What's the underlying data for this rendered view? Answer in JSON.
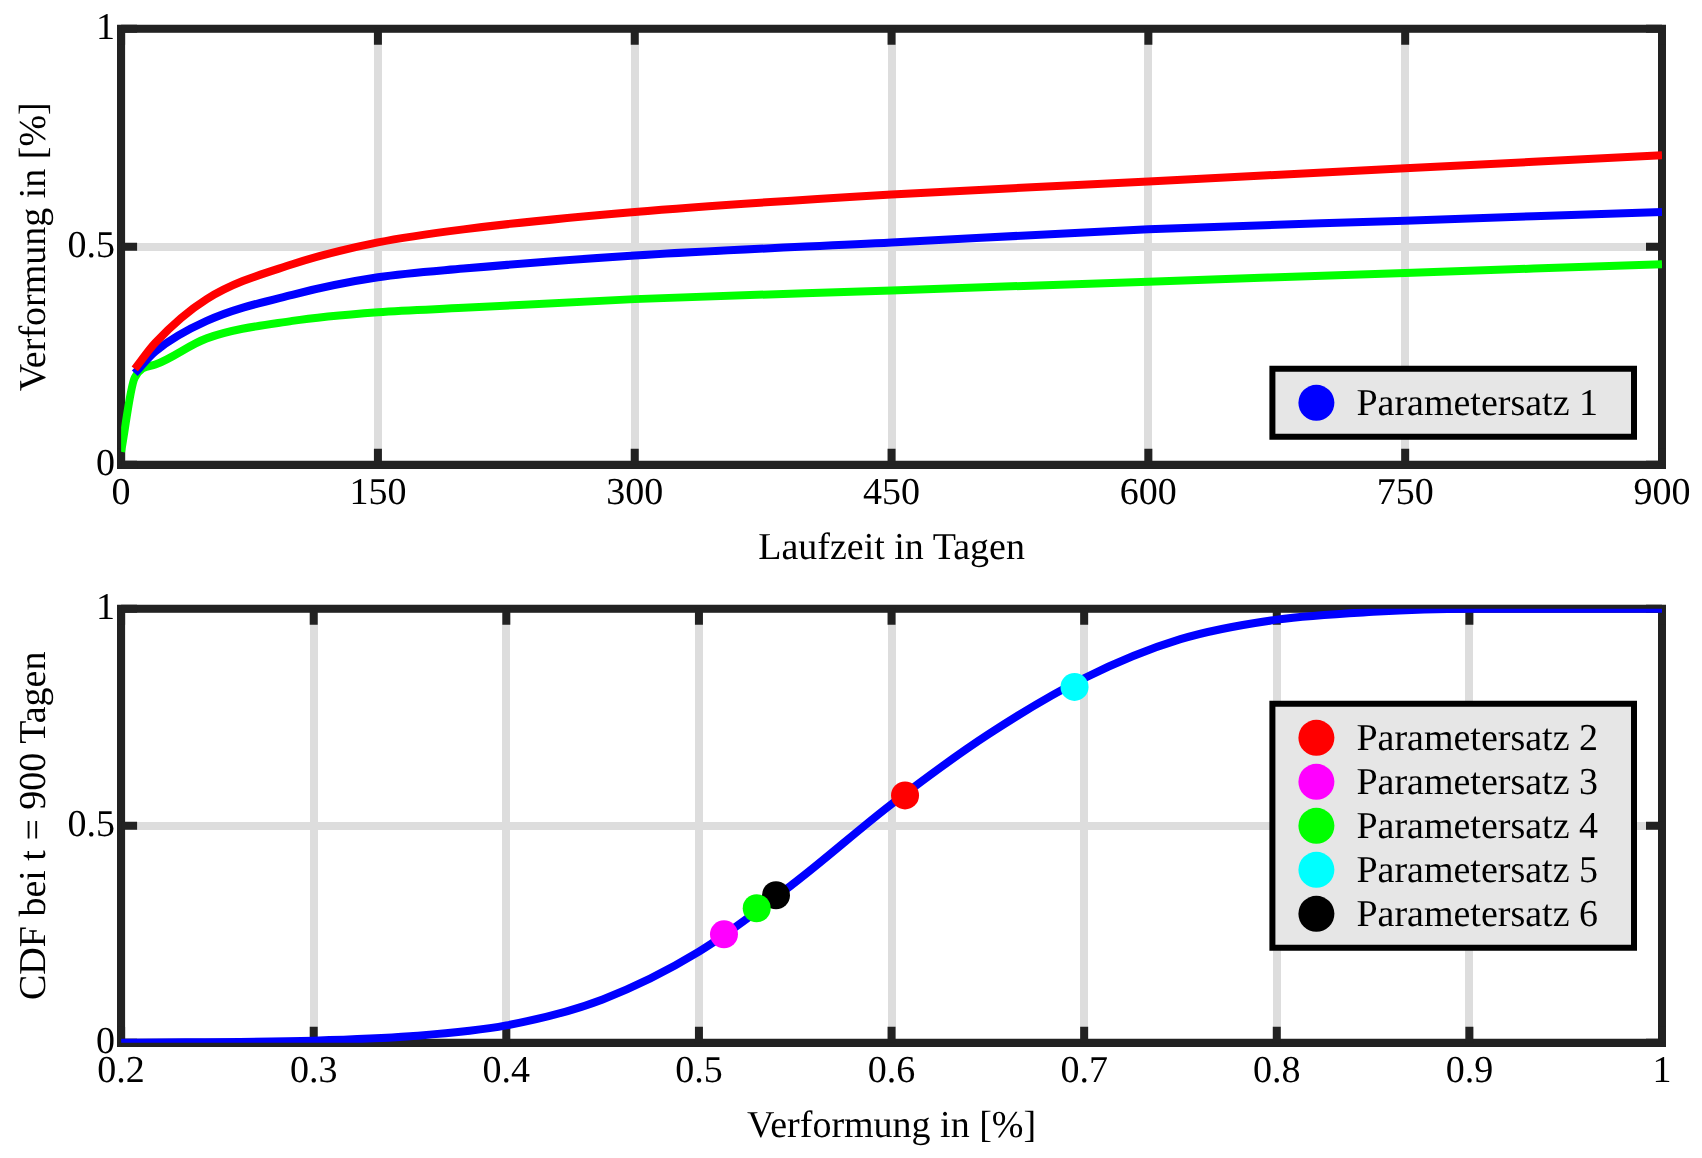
{
  "chart_data": [
    {
      "type": "line",
      "xlabel": "Laufzeit in Tagen",
      "ylabel": "Verformung in [%]",
      "xlim": [
        0,
        900
      ],
      "ylim": [
        0,
        1
      ],
      "xticks": [
        0,
        150,
        300,
        450,
        600,
        750,
        900
      ],
      "yticks": [
        0,
        0.5,
        1
      ],
      "grid": true,
      "legend": "bottom right",
      "marker": "none",
      "series": [
        {
          "color": "#ff0000",
          "x": [
            8,
            20,
            50,
            100,
            150,
            200,
            300,
            450,
            600,
            750,
            900
          ],
          "values": [
            0.22,
            0.28,
            0.38,
            0.46,
            0.51,
            0.54,
            0.58,
            0.62,
            0.65,
            0.68,
            0.71
          ]
        },
        {
          "name": "Parametersatz 1",
          "color": "#0000ff",
          "x": [
            8,
            20,
            50,
            100,
            150,
            200,
            300,
            450,
            600,
            750,
            900
          ],
          "values": [
            0.21,
            0.26,
            0.33,
            0.39,
            0.43,
            0.45,
            0.48,
            0.51,
            0.54,
            0.56,
            0.58
          ]
        },
        {
          "color": "#00ff00",
          "x": [
            0,
            8,
            20,
            50,
            100,
            150,
            200,
            300,
            450,
            600,
            750,
            900
          ],
          "values": [
            0.03,
            0.2,
            0.23,
            0.29,
            0.33,
            0.35,
            0.36,
            0.38,
            0.4,
            0.42,
            0.44,
            0.46
          ]
        }
      ]
    },
    {
      "type": "line",
      "xlabel": "Verformung in [%]",
      "ylabel": "CDF bei t = 900 Tagen",
      "xlim": [
        0.2,
        1
      ],
      "ylim": [
        0,
        1
      ],
      "xticks": [
        0.2,
        0.3,
        0.4,
        0.5,
        0.6,
        0.7,
        0.8,
        0.9,
        1
      ],
      "yticks": [
        0,
        0.5,
        1
      ],
      "grid": true,
      "legend": "right",
      "marker": "none",
      "series": [
        {
          "color": "#0000ff",
          "x": [
            0.2,
            0.3,
            0.35,
            0.4,
            0.45,
            0.5,
            0.55,
            0.6,
            0.65,
            0.7,
            0.75,
            0.8,
            0.85,
            0.9,
            1
          ],
          "values": [
            0,
            0.005,
            0.015,
            0.04,
            0.1,
            0.21,
            0.37,
            0.55,
            0.71,
            0.84,
            0.93,
            0.975,
            0.993,
            1,
            1
          ]
        },
        {
          "type": "scatter",
          "marker": "circle",
          "name": "Parametersatz 2",
          "color": "#ff0000",
          "x": [
            0.607
          ],
          "values": [
            0.57
          ]
        },
        {
          "type": "scatter",
          "marker": "circle",
          "name": "Parametersatz 3",
          "color": "#ff00ff",
          "x": [
            0.513
          ],
          "values": [
            0.25
          ]
        },
        {
          "type": "scatter",
          "marker": "circle",
          "name": "Parametersatz 4",
          "color": "#00ff00",
          "x": [
            0.53
          ],
          "values": [
            0.31
          ]
        },
        {
          "type": "scatter",
          "marker": "circle",
          "name": "Parametersatz 5",
          "color": "#00ffff",
          "x": [
            0.695
          ],
          "values": [
            0.82
          ]
        },
        {
          "type": "scatter",
          "marker": "circle",
          "name": "Parametersatz 6",
          "color": "#000000",
          "x": [
            0.54
          ],
          "values": [
            0.34
          ]
        }
      ]
    }
  ]
}
